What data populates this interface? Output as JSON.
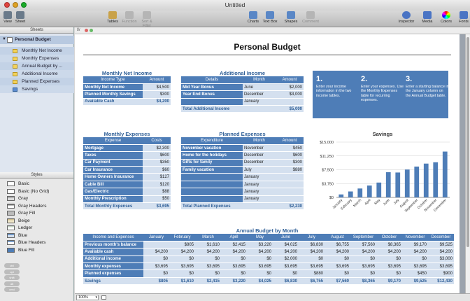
{
  "window": {
    "title": "Untitled"
  },
  "toolbar": {
    "left": [
      {
        "label": "View",
        "icon": "view-icon"
      },
      {
        "label": "Sheet",
        "icon": "sheet-icon"
      }
    ],
    "center": [
      {
        "label": "Tables",
        "icon": "tables-icon",
        "dis": false
      },
      {
        "label": "Function",
        "icon": "function-icon",
        "dis": true
      },
      {
        "label": "Sort & Filter",
        "icon": "sort-filter-icon",
        "dis": true
      }
    ],
    "right_mid": [
      {
        "label": "Charts",
        "icon": "charts-icon",
        "dis": false
      },
      {
        "label": "Text Box",
        "icon": "text-box-icon",
        "dis": false
      },
      {
        "label": "Shapes",
        "icon": "shapes-icon",
        "dis": false
      },
      {
        "label": "Comment",
        "icon": "comment-icon",
        "dis": true
      }
    ],
    "right": [
      {
        "label": "Inspector",
        "icon": "inspector-icon"
      },
      {
        "label": "Media",
        "icon": "media-icon"
      },
      {
        "label": "Colors",
        "icon": "colors-icon"
      },
      {
        "label": "Fonts",
        "icon": "fonts-icon"
      }
    ]
  },
  "sheets_pane": {
    "header": "Sheets",
    "sheet": "Personal Budget",
    "items": [
      "Monthly Net Income",
      "Monthly Expenses",
      "Annual Budget by ...",
      "Additional Income",
      "Planned Expenses",
      "Savings"
    ]
  },
  "styles_pane": {
    "header": "Styles",
    "items": [
      {
        "label": "Basic",
        "head": "#ffffff",
        "body": "#ffffff"
      },
      {
        "label": "Basic (No Grid)",
        "head": "#ffffff",
        "body": "#ffffff"
      },
      {
        "label": "Gray",
        "head": "#9a9a9a",
        "body": "#dcdcdc"
      },
      {
        "label": "Gray Headers",
        "head": "#777777",
        "body": "#ffffff"
      },
      {
        "label": "Gray Fill",
        "head": "#bbbbbb",
        "body": "#bbbbbb"
      },
      {
        "label": "Beige",
        "head": "#c9b98b",
        "body": "#efe6c8"
      },
      {
        "label": "Ledger",
        "head": "#bfcfbf",
        "body": "#ffffff"
      },
      {
        "label": "Blue",
        "head": "#4e7db7",
        "body": "#d4e0ef"
      },
      {
        "label": "Blue Headers",
        "head": "#4e7db7",
        "body": "#ffffff"
      },
      {
        "label": "Blue Fill",
        "head": "#4e7db7",
        "body": "#4e7db7"
      }
    ],
    "format_buttons": [
      "ctrl",
      "opt",
      "shift",
      "alt",
      "cmd"
    ]
  },
  "status": {
    "zoom": "100%"
  },
  "page": {
    "title": "Personal Budget"
  },
  "net_income": {
    "title": "Monthly Net Income",
    "headers": [
      "Income Type",
      "Amount"
    ],
    "rows": [
      [
        "Monthly Net Income",
        "$4,500"
      ],
      [
        "Planned Monthly Savings",
        "$300"
      ]
    ],
    "footer": [
      "Available Cash",
      "$4,200"
    ]
  },
  "additional_income": {
    "title": "Additional Income",
    "headers": [
      "Details",
      "Month",
      "Amount"
    ],
    "rows": [
      [
        "Mid Year Bonus",
        "June",
        "$2,000"
      ],
      [
        "Year End Bonus",
        "December",
        "$3,000"
      ],
      [
        "",
        "January",
        ""
      ]
    ],
    "footer": [
      "Total Additional Income",
      "",
      "$5,000"
    ]
  },
  "instructions": [
    {
      "num": "1.",
      "text": "Enter your income information in the two income tables."
    },
    {
      "num": "2.",
      "text": "Enter your expenses. Use the Monthly Expenses table for recurring expenses."
    },
    {
      "num": "3.",
      "text": "Enter a starting balance in the January column on the Annual Budget table."
    }
  ],
  "monthly_expenses": {
    "title": "Monthly Expenses",
    "headers": [
      "Expense",
      "Costs"
    ],
    "rows": [
      [
        "Mortgage",
        "$2,300"
      ],
      [
        "Taxes",
        "$600"
      ],
      [
        "Car Payment",
        "$350"
      ],
      [
        "Car Insurance",
        "$60"
      ],
      [
        "Home Owners Insurance",
        "$127"
      ],
      [
        "Cable Bill",
        "$120"
      ],
      [
        "Gas/Electric",
        "$88"
      ],
      [
        "Monthly Prescription",
        "$50"
      ]
    ],
    "footer": [
      "Total Monthly Expenses",
      "$3,695"
    ]
  },
  "planned_expenses": {
    "title": "Planned Expenses",
    "headers": [
      "Expenditure",
      "Month",
      "Amount"
    ],
    "rows": [
      [
        "November vacation",
        "November",
        "$450"
      ],
      [
        "Home for the holidays",
        "December",
        "$600"
      ],
      [
        "Gifts for family",
        "December",
        "$300"
      ],
      [
        "Family vacation",
        "July",
        "$880"
      ],
      [
        "",
        "January",
        ""
      ],
      [
        "",
        "January",
        ""
      ],
      [
        "",
        "January",
        ""
      ],
      [
        "",
        "January",
        ""
      ]
    ],
    "footer": [
      "Total Planned Expenses",
      "",
      "$2,230"
    ]
  },
  "chart_data": {
    "type": "bar",
    "title": "Savings",
    "categories": [
      "January",
      "February",
      "March",
      "April",
      "May",
      "June",
      "July",
      "August",
      "September",
      "October",
      "November",
      "December"
    ],
    "values": [
      805,
      1610,
      2415,
      3220,
      4025,
      6830,
      6755,
      7560,
      8365,
      9170,
      9525,
      12430
    ],
    "ylim": [
      0,
      15000
    ],
    "yticks": [
      "$0",
      "$3,750",
      "$7,500",
      "$11,250",
      "$15,000"
    ],
    "grid": true,
    "color": "#4e7db7"
  },
  "annual": {
    "title": "Annual Budget by Month",
    "headers": [
      "Income and Expenses",
      "January",
      "February",
      "March",
      "April",
      "May",
      "June",
      "July",
      "August",
      "September",
      "October",
      "November",
      "December"
    ],
    "rows": [
      [
        "Previous month's balance",
        "",
        "$805",
        "$1,610",
        "$2,415",
        "$3,220",
        "$4,025",
        "$6,830",
        "$6,755",
        "$7,560",
        "$8,365",
        "$9,170",
        "$9,525"
      ],
      [
        "Available cash",
        "$4,200",
        "$4,200",
        "$4,200",
        "$4,200",
        "$4,200",
        "$4,200",
        "$4,200",
        "$4,200",
        "$4,200",
        "$4,200",
        "$4,200",
        "$4,200"
      ],
      [
        "Additional income",
        "$0",
        "$0",
        "$0",
        "$0",
        "$0",
        "$2,000",
        "$0",
        "$0",
        "$0",
        "$0",
        "$0",
        "$3,000"
      ],
      [
        "Monthly expenses",
        "$3,695",
        "$3,695",
        "$3,695",
        "$3,695",
        "$3,695",
        "$3,695",
        "$3,695",
        "$3,695",
        "$3,695",
        "$3,695",
        "$3,695",
        "$3,695"
      ],
      [
        "Planned expenses",
        "$0",
        "$0",
        "$0",
        "$0",
        "$0",
        "$0",
        "$880",
        "$0",
        "$0",
        "$0",
        "$450",
        "$900"
      ]
    ],
    "footer": [
      "Savings",
      "$805",
      "$1,610",
      "$2,415",
      "$3,220",
      "$4,025",
      "$6,830",
      "$6,755",
      "$7,560",
      "$8,365",
      "$9,170",
      "$9,525",
      "$12,430"
    ]
  }
}
